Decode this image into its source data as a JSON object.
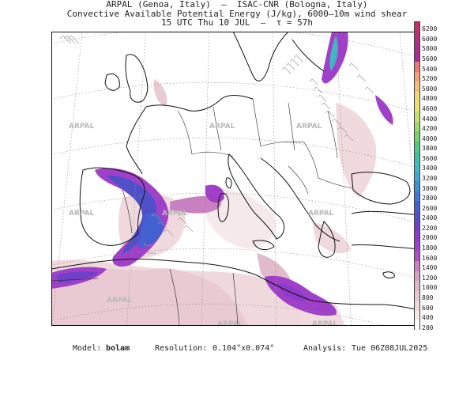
{
  "header": {
    "line1": "ARPAL (Genoa, Italy)  –  ISAC-CNR (Bologna, Italy)",
    "line2": "Convective Available Potential Energy (J/kg), 6000–10m wind shear",
    "line3": "15 UTC Thu 10 JUL  –  τ = 57h"
  },
  "colorbar": {
    "labels": [
      "6200",
      "6000",
      "5800",
      "5600",
      "5400",
      "5200",
      "5000",
      "4800",
      "4600",
      "4400",
      "4200",
      "4000",
      "3800",
      "3600",
      "3400",
      "3200",
      "3000",
      "2800",
      "2600",
      "2400",
      "2200",
      "2000",
      "1800",
      "1600",
      "1400",
      "1200",
      "1000",
      "800",
      "600",
      "400",
      "200"
    ],
    "colors": [
      "#c0306a",
      "#b8307a",
      "#ad2f8a",
      "#a42e96",
      "#e87a7a",
      "#f2a07a",
      "#f5c07a",
      "#f5d878",
      "#e8e070",
      "#c8e070",
      "#a0d870",
      "#78d070",
      "#50c880",
      "#40c0a0",
      "#40b8c0",
      "#40a8d0",
      "#4090d8",
      "#4078d8",
      "#4460d0",
      "#5050c8",
      "#7040c8",
      "#8c3cc8",
      "#a040c8",
      "#b050c0",
      "#c880c0",
      "#d8a0c8",
      "#e0b8c8",
      "#e8c8d0",
      "#f0d8d8",
      "#f5e8e8",
      "#ffffff"
    ]
  },
  "watermark": "ARPAL",
  "footer": {
    "model_label": "Model:",
    "model_value": "bolam",
    "resolution_label": "Resolution:",
    "resolution_value": "0.104°x0.074°",
    "analysis_label": "Analysis:",
    "analysis_value": "Tue 06Z08JUL2025"
  }
}
